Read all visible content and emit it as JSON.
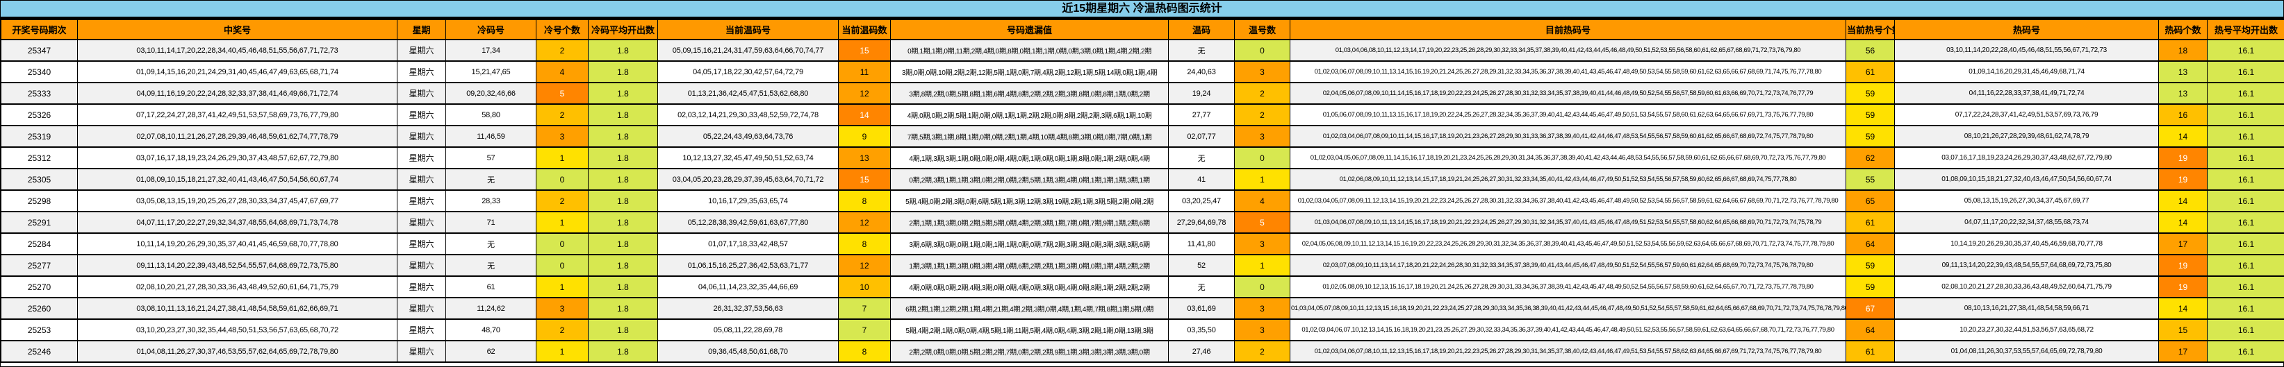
{
  "title": "近15期星期六 冷温热码图示统计",
  "colors": {
    "title_bar_bg": "#87CEEB",
    "header_bg": "#FF9900",
    "scale_low": "#D7E850",
    "scale_yellow": "#FFE100",
    "scale_amber": "#FFC000",
    "scale_orange": "#FFA000",
    "scale_high": "#FF8500",
    "row_odd_bg": "#F1F1F1",
    "row_even_bg": "#FFFFFF",
    "border": "#000000"
  },
  "chart_data": {
    "type": "table",
    "title": "近15期星期六 冷温热码图示统计",
    "columns": [
      {
        "key": "period",
        "label": "开奖号码期次"
      },
      {
        "key": "win",
        "label": "中奖号",
        "cls": "list"
      },
      {
        "key": "week",
        "label": "星期"
      },
      {
        "key": "cold",
        "label": "冷码号",
        "cls": "list"
      },
      {
        "key": "cold_n",
        "label": "冷号个数",
        "tier": "cold_t"
      },
      {
        "key": "cold_avg",
        "label": "冷码平均开出数",
        "cls": "avg"
      },
      {
        "key": "warm",
        "label": "当前温码号",
        "cls": "list"
      },
      {
        "key": "warm_n",
        "label": "当前温码数",
        "tier": "warm_t"
      },
      {
        "key": "omission",
        "label": "号码遗漏值",
        "cls": "small"
      },
      {
        "key": "wen",
        "label": "温码",
        "cls": "list"
      },
      {
        "key": "wen_n",
        "label": "温号数",
        "tier": "wen_t"
      },
      {
        "key": "cur_hot",
        "label": "目前热码号",
        "cls": "tiny"
      },
      {
        "key": "cur_hot_n",
        "label": "当前热号个数",
        "tier": "cur_hot_t"
      },
      {
        "key": "hot",
        "label": "热码号",
        "cls": "small"
      },
      {
        "key": "hot_n",
        "label": "热码个数",
        "tier": "hot_t"
      },
      {
        "key": "hot_avg",
        "label": "热号平均开出数",
        "cls": "avg"
      }
    ],
    "rows": [
      {
        "period": "25347",
        "win": "03,10,11,14,17,20,22,28,34,40,45,46,48,51,55,56,67,71,72,73",
        "week": "星期六",
        "cold": "17,34",
        "cold_n": "2",
        "cold_t": 2,
        "cold_avg": "1.8",
        "warm": "05,09,15,16,21,24,31,47,59,63,64,66,70,74,77",
        "warm_n": "15",
        "warm_t": 4,
        "omission": "0期,1期,1期,0期,11期,2期,4期,0期,8期,0期,1期,1期,0期,0期,3期,0期,1期,4期,2期,2期",
        "wen": "无",
        "wen_n": "0",
        "wen_t": 0,
        "cur_hot": "01,03,04,06,08,10,11,12,13,14,17,19,20,22,23,25,26,28,29,30,32,33,34,35,37,38,39,40,41,42,43,44,45,46,48,49,50,51,52,53,55,56,58,60,61,62,65,67,68,69,71,72,73,76,79,80",
        "cur_hot_n": "56",
        "cur_hot_t": 0,
        "hot": "03,10,11,14,20,22,28,40,45,46,48,51,55,56,67,71,72,73",
        "hot_n": "18",
        "hot_t": 3,
        "hot_avg": "16.1"
      },
      {
        "period": "25340",
        "win": "01,09,14,15,16,20,21,24,29,31,40,45,46,47,49,63,65,68,71,74",
        "week": "星期六",
        "cold": "15,21,47,65",
        "cold_n": "4",
        "cold_t": 3,
        "cold_avg": "1.8",
        "warm": "04,05,17,18,22,30,42,57,64,72,79",
        "warm_n": "11",
        "warm_t": 3,
        "omission": "3期,0期,0期,10期,2期,2期,12期,5期,1期,0期,7期,4期,2期,12期,1期,5期,14期,0期,1期,4期",
        "wen": "24,40,63",
        "wen_n": "3",
        "wen_t": 3,
        "cur_hot": "01,02,03,06,07,08,09,10,11,13,14,15,16,19,20,21,24,25,26,27,28,29,31,32,33,34,35,36,37,38,39,40,41,43,45,46,47,48,49,50,53,54,55,58,59,60,61,62,63,65,66,67,68,69,71,74,75,76,77,78,80",
        "cur_hot_n": "61",
        "cur_hot_t": 2,
        "hot": "01,09,14,16,20,29,31,45,46,49,68,71,74",
        "hot_n": "13",
        "hot_t": 0,
        "hot_avg": "16.1"
      },
      {
        "period": "25333",
        "win": "04,09,11,16,19,20,22,24,28,32,33,37,38,41,46,49,66,71,72,74",
        "week": "星期六",
        "cold": "09,20,32,46,66",
        "cold_n": "5",
        "cold_t": 4,
        "cold_avg": "1.8",
        "warm": "01,13,21,36,42,45,47,51,53,62,68,80",
        "warm_n": "12",
        "warm_t": 3,
        "omission": "3期,8期,2期,0期,5期,8期,1期,6期,4期,8期,2期,2期,2期,3期,8期,0期,8期,1期,0期,2期",
        "wen": "19,24",
        "wen_n": "2",
        "wen_t": 2,
        "cur_hot": "02,04,05,06,07,08,09,10,11,14,15,16,17,18,19,20,22,23,24,25,26,27,28,30,31,32,33,34,35,37,38,39,40,41,44,46,48,49,50,52,54,55,56,57,58,59,60,61,63,66,69,70,71,72,73,74,76,77,79",
        "cur_hot_n": "59",
        "cur_hot_t": 1,
        "hot": "04,11,16,22,28,33,37,38,41,49,71,72,74",
        "hot_n": "13",
        "hot_t": 0,
        "hot_avg": "16.1"
      },
      {
        "period": "25326",
        "win": "07,17,22,24,27,28,37,41,42,49,51,53,57,58,69,73,76,77,79,80",
        "week": "星期六",
        "cold": "58,80",
        "cold_n": "2",
        "cold_t": 2,
        "cold_avg": "1.8",
        "warm": "02,03,12,14,21,29,30,33,48,52,59,72,74,78",
        "warm_n": "14",
        "warm_t": 4,
        "omission": "4期,0期,0期,2期,5期,1期,0期,0期,1期,1期,2期,2期,0期,8期,2期,2期,3期,6期,1期,10期",
        "wen": "27,77",
        "wen_n": "2",
        "wen_t": 2,
        "cur_hot": "01,05,06,07,08,09,10,11,13,15,16,17,18,19,20,22,24,25,26,27,28,32,34,35,36,37,39,40,41,42,43,44,45,46,47,49,50,51,53,54,55,57,58,60,61,62,63,64,65,66,67,69,71,73,75,76,77,79,80",
        "cur_hot_n": "59",
        "cur_hot_t": 1,
        "hot": "07,17,22,24,28,37,41,42,49,51,53,57,69,73,76,79",
        "hot_n": "16",
        "hot_t": 2,
        "hot_avg": "16.1"
      },
      {
        "period": "25319",
        "win": "02,07,08,10,11,21,26,27,28,29,39,46,48,59,61,62,74,77,78,79",
        "week": "星期六",
        "cold": "11,46,59",
        "cold_n": "3",
        "cold_t": 3,
        "cold_avg": "1.8",
        "warm": "05,22,24,43,49,63,64,73,76",
        "warm_n": "9",
        "warm_t": 1,
        "omission": "7期,5期,3期,1期,8期,1期,0期,0期,2期,1期,4期,10期,4期,8期,3期,0期,0期,7期,0期,1期",
        "wen": "02,07,77",
        "wen_n": "3",
        "wen_t": 3,
        "cur_hot": "01,02,03,04,06,07,08,09,10,11,14,15,16,17,18,19,20,21,23,26,27,28,29,30,31,33,36,37,38,39,40,41,42,44,46,47,48,53,54,55,56,57,58,59,60,61,62,65,66,67,68,69,72,74,75,77,78,79,80",
        "cur_hot_n": "59",
        "cur_hot_t": 1,
        "hot": "08,10,21,26,27,28,29,39,48,61,62,74,78,79",
        "hot_n": "14",
        "hot_t": 1,
        "hot_avg": "16.1"
      },
      {
        "period": "25312",
        "win": "03,07,16,17,18,19,23,24,26,29,30,37,43,48,57,62,67,72,79,80",
        "week": "星期六",
        "cold": "57",
        "cold_n": "1",
        "cold_t": 1,
        "cold_avg": "1.8",
        "warm": "10,12,13,27,32,45,47,49,50,51,52,63,74",
        "warm_n": "13",
        "warm_t": 3,
        "omission": "4期,1期,3期,3期,1期,0期,0期,0期,4期,0期,1期,0期,0期,1期,8期,0期,1期,2期,0期,4期",
        "wen": "无",
        "wen_n": "0",
        "wen_t": 0,
        "cur_hot": "01,02,03,04,05,06,07,08,09,11,14,15,16,17,18,19,20,21,23,24,25,26,28,29,30,31,34,35,36,37,38,39,40,41,42,43,44,46,48,53,54,55,56,57,58,59,60,61,62,65,66,67,68,69,70,72,73,75,76,77,79,80",
        "cur_hot_n": "62",
        "cur_hot_t": 3,
        "hot": "03,07,16,17,18,19,23,24,26,29,30,37,43,48,62,67,72,79,80",
        "hot_n": "19",
        "hot_t": 4,
        "hot_avg": "16.1"
      },
      {
        "period": "25305",
        "win": "01,08,09,10,15,18,21,27,32,40,41,43,46,47,50,54,56,60,67,74",
        "week": "星期六",
        "cold": "无",
        "cold_n": "0",
        "cold_t": 0,
        "cold_avg": "1.8",
        "warm": "03,04,05,20,23,28,29,37,39,45,63,64,70,71,72",
        "warm_n": "15",
        "warm_t": 4,
        "omission": "0期,2期,3期,1期,1期,3期,0期,2期,0期,2期,5期,1期,3期,4期,0期,1期,1期,1期,3期,1期",
        "wen": "41",
        "wen_n": "1",
        "wen_t": 1,
        "cur_hot": "01,02,06,08,09,10,11,12,13,14,15,17,18,19,21,24,25,26,27,30,31,32,33,34,35,40,41,42,43,44,46,47,49,50,51,52,53,54,55,56,57,58,59,60,62,65,66,67,68,69,74,75,77,78,80",
        "cur_hot_n": "55",
        "cur_hot_t": 0,
        "hot": "01,08,09,10,15,18,21,27,32,40,43,46,47,50,54,56,60,67,74",
        "hot_n": "19",
        "hot_t": 4,
        "hot_avg": "16.1"
      },
      {
        "period": "25298",
        "win": "03,05,08,13,15,19,20,25,26,27,28,30,33,34,37,45,47,67,69,77",
        "week": "星期六",
        "cold": "28,33",
        "cold_n": "2",
        "cold_t": 2,
        "cold_avg": "1.8",
        "warm": "10,16,17,29,35,63,65,74",
        "warm_n": "8",
        "warm_t": 1,
        "omission": "5期,4期,0期,2期,3期,0期,6期,5期,1期,3期,12期,3期,19期,2期,1期,3期,5期,2期,0期,2期",
        "wen": "03,20,25,47",
        "wen_n": "4",
        "wen_t": 3,
        "cur_hot": "01,02,03,04,05,07,08,09,11,12,13,14,15,19,20,21,22,23,24,25,26,27,28,30,31,32,33,34,36,37,38,40,41,42,43,45,46,47,48,49,50,52,53,54,55,56,57,58,59,61,62,64,66,67,68,69,70,71,72,73,76,77,78,79,80",
        "cur_hot_n": "65",
        "cur_hot_t": 3,
        "hot": "05,08,13,15,19,26,27,30,34,37,45,67,69,77",
        "hot_n": "14",
        "hot_t": 1,
        "hot_avg": "16.1"
      },
      {
        "period": "25291",
        "win": "04,07,11,17,20,22,27,29,32,34,37,48,55,64,68,69,71,73,74,78",
        "week": "星期六",
        "cold": "71",
        "cold_n": "1",
        "cold_t": 1,
        "cold_avg": "1.8",
        "warm": "05,12,28,38,39,42,59,61,63,67,77,80",
        "warm_n": "12",
        "warm_t": 3,
        "omission": "2期,1期,1期,3期,0期,2期,5期,5期,0期,4期,2期,3期,1期,7期,0期,7期,9期,1期,2期,6期",
        "wen": "27,29,64,69,78",
        "wen_n": "5",
        "wen_t": 4,
        "cur_hot": "01,03,04,06,07,08,09,10,11,13,14,15,16,17,18,19,20,21,22,23,24,25,26,27,29,30,31,32,34,35,37,40,41,43,45,46,47,48,49,51,52,53,54,55,57,58,60,62,64,65,66,68,69,70,71,72,73,74,75,78,79",
        "cur_hot_n": "61",
        "cur_hot_t": 2,
        "hot": "04,07,11,17,20,22,32,34,37,48,55,68,73,74",
        "hot_n": "14",
        "hot_t": 1,
        "hot_avg": "16.1"
      },
      {
        "period": "25284",
        "win": "10,11,14,19,20,26,29,30,35,37,40,41,45,46,59,68,70,77,78,80",
        "week": "星期六",
        "cold": "无",
        "cold_n": "0",
        "cold_t": 0,
        "cold_avg": "1.8",
        "warm": "01,07,17,18,33,42,48,57",
        "warm_n": "8",
        "warm_t": 1,
        "omission": "3期,6期,3期,0期,0期,1期,0期,1期,1期,0期,0期,7期,2期,3期,3期,0期,3期,3期,3期,6期",
        "wen": "11,41,80",
        "wen_n": "3",
        "wen_t": 3,
        "cur_hot": "02,04,05,06,08,09,10,11,12,13,14,15,16,19,20,22,23,24,25,26,28,29,30,31,32,34,35,36,37,38,39,40,41,43,45,46,47,49,50,51,52,53,54,55,56,59,62,63,64,65,66,67,68,69,70,71,72,73,74,75,77,78,79,80",
        "cur_hot_n": "64",
        "cur_hot_t": 3,
        "hot": "10,14,19,20,26,29,30,35,37,40,45,46,59,68,70,77,78",
        "hot_n": "17",
        "hot_t": 3,
        "hot_avg": "16.1"
      },
      {
        "period": "25277",
        "win": "09,11,13,14,20,22,39,43,48,52,54,55,57,64,68,69,72,73,75,80",
        "week": "星期六",
        "cold": "无",
        "cold_n": "0",
        "cold_t": 0,
        "cold_avg": "1.8",
        "warm": "01,06,15,16,25,27,36,42,53,63,71,77",
        "warm_n": "12",
        "warm_t": 3,
        "omission": "1期,3期,1期,1期,3期,0期,3期,4期,0期,6期,2期,2期,1期,3期,0期,0期,1期,4期,2期,2期",
        "wen": "52",
        "wen_n": "1",
        "wen_t": 1,
        "cur_hot": "02,03,07,08,09,10,11,13,14,17,18,20,21,22,24,26,28,30,31,32,33,34,35,37,38,39,40,41,43,44,45,46,47,48,49,50,51,52,54,55,56,57,59,60,61,62,64,65,68,69,70,72,73,74,75,76,78,79,80",
        "cur_hot_n": "59",
        "cur_hot_t": 1,
        "hot": "09,11,13,14,20,22,39,43,48,54,55,57,64,68,69,72,73,75,80",
        "hot_n": "19",
        "hot_t": 4,
        "hot_avg": "16.1"
      },
      {
        "period": "25270",
        "win": "02,08,10,20,21,27,28,30,33,36,43,48,49,52,60,61,64,71,75,79",
        "week": "星期六",
        "cold": "61",
        "cold_n": "1",
        "cold_t": 1,
        "cold_avg": "1.8",
        "warm": "04,06,11,14,23,32,35,44,66,69",
        "warm_n": "10",
        "warm_t": 2,
        "omission": "4期,0期,0期,0期,2期,4期,3期,0期,0期,4期,0期,3期,0期,4期,0期,8期,1期,2期,2期,2期",
        "wen": "无",
        "wen_n": "0",
        "wen_t": 0,
        "cur_hot": "01,02,05,08,09,10,12,13,15,16,17,18,19,20,21,24,25,26,27,28,29,30,31,33,34,36,37,38,39,41,42,43,45,47,48,49,50,52,54,55,56,57,58,59,60,61,62,64,65,67,70,71,72,73,75,77,78,79,80",
        "cur_hot_n": "59",
        "cur_hot_t": 1,
        "hot": "02,08,10,20,21,27,28,30,33,36,43,48,49,52,60,64,71,75,79",
        "hot_n": "19",
        "hot_t": 4,
        "hot_avg": "16.1"
      },
      {
        "period": "25260",
        "win": "03,08,10,11,13,16,21,24,27,38,41,48,54,58,59,61,62,66,69,71",
        "week": "星期六",
        "cold": "11,24,62",
        "cold_n": "3",
        "cold_t": 3,
        "cold_avg": "1.8",
        "warm": "26,31,32,37,53,56,63",
        "warm_n": "7",
        "warm_t": 0,
        "omission": "6期,2期,1期,12期,2期,1期,4期,21期,4期,2期,3期,0期,4期,1期,4期,7期,8期,1期,5期,0期",
        "wen": "03,61,69",
        "wen_n": "3",
        "wen_t": 3,
        "cur_hot": "01,03,04,05,07,08,09,10,11,12,13,15,16,18,19,20,21,22,23,24,25,27,28,29,30,33,34,35,36,38,39,40,41,42,43,44,45,46,47,48,49,50,51,52,54,55,57,58,59,61,62,64,65,66,67,68,69,70,71,72,73,74,75,76,78,79,80",
        "cur_hot_n": "67",
        "cur_hot_t": 4,
        "hot": "08,10,13,16,21,27,38,41,48,54,58,59,66,71",
        "hot_n": "14",
        "hot_t": 1,
        "hot_avg": "16.1"
      },
      {
        "period": "25253",
        "win": "03,10,20,23,27,30,32,35,44,48,50,51,53,56,57,63,65,68,70,72",
        "week": "星期六",
        "cold": "48,70",
        "cold_n": "2",
        "cold_t": 2,
        "cold_avg": "1.8",
        "warm": "05,08,11,22,28,69,78",
        "warm_n": "7",
        "warm_t": 0,
        "omission": "5期,4期,2期,1期,0期,0期,4期,5期,1期,11期,5期,4期,0期,4期,3期,2期,1期,0期,13期,3期",
        "wen": "03,35,50",
        "wen_n": "3",
        "wen_t": 3,
        "cur_hot": "01,02,03,04,06,07,10,12,13,14,15,16,18,19,20,21,23,25,26,27,29,30,32,33,34,35,36,37,39,40,41,42,43,44,45,46,47,48,49,50,51,52,53,55,56,57,58,59,61,62,63,64,65,66,67,68,70,71,72,73,76,77,79,80",
        "cur_hot_n": "64",
        "cur_hot_t": 3,
        "hot": "10,20,23,27,30,32,44,51,53,56,57,63,65,68,72",
        "hot_n": "15",
        "hot_t": 2,
        "hot_avg": "16.1"
      },
      {
        "period": "25246",
        "win": "01,04,08,11,26,27,30,37,46,53,55,57,62,64,65,69,72,78,79,80",
        "week": "星期六",
        "cold": "62",
        "cold_n": "1",
        "cold_t": 1,
        "cold_avg": "1.8",
        "warm": "09,36,45,48,50,61,68,70",
        "warm_n": "8",
        "warm_t": 1,
        "omission": "2期,2期,0期,0期,0期,5期,2期,2期,7期,0期,2期,2期,9期,1期,3期,3期,3期,3期,3期,0期",
        "wen": "27,46",
        "wen_n": "2",
        "wen_t": 2,
        "cur_hot": "01,02,03,04,06,07,08,10,11,12,13,15,16,17,18,19,20,21,22,23,25,26,27,28,29,30,31,34,35,37,38,40,42,43,44,46,47,49,51,53,54,55,57,58,62,63,64,65,66,67,69,71,72,73,74,75,76,77,78,79,80",
        "cur_hot_n": "61",
        "cur_hot_t": 2,
        "hot": "01,04,08,11,26,30,37,53,55,57,64,65,69,72,78,79,80",
        "hot_n": "17",
        "hot_t": 3,
        "hot_avg": "16.1"
      }
    ]
  }
}
